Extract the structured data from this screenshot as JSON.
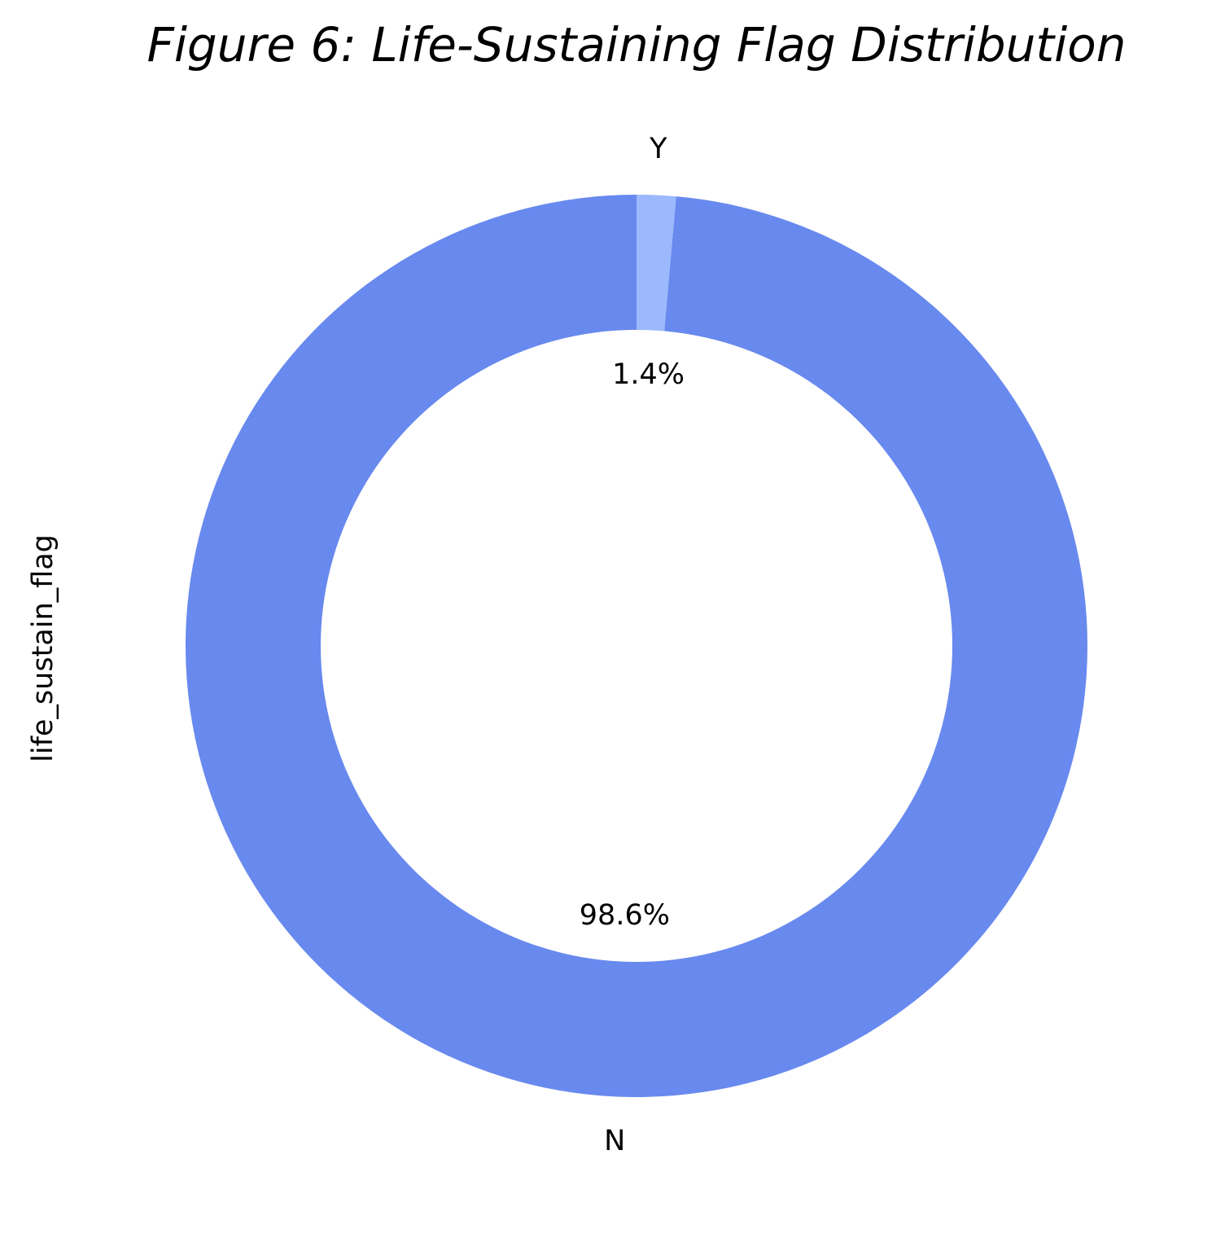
{
  "chart_data": {
    "type": "pie",
    "donut": true,
    "title": "Figure 6: Life-Sustaining Flag Distribution",
    "ylabel": "life_sustain_flag",
    "categories": [
      "N",
      "Y"
    ],
    "values": [
      98.6,
      1.4
    ],
    "percent_labels": [
      "98.6%",
      "1.4%"
    ],
    "colors": [
      "#6889ee",
      "#9bb9fc"
    ],
    "start_angle": "top",
    "direction": "counterclockwise",
    "legend": "none"
  }
}
